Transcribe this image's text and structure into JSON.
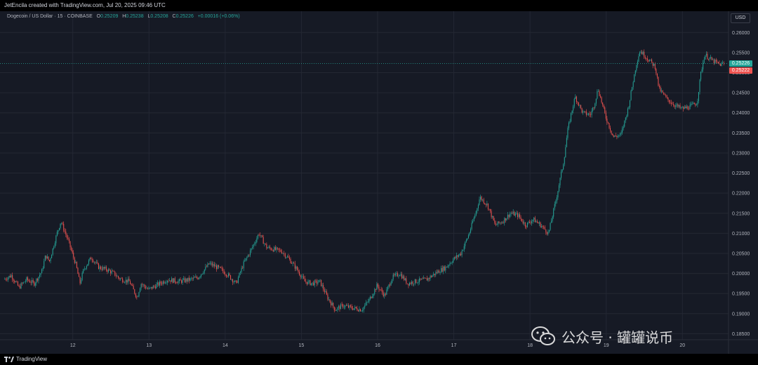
{
  "header": {
    "created_text": "JetEncila created with TradingView.com, Jul 20, 2025 09:46 UTC"
  },
  "symbol": {
    "title": "Dogecoin / US Dollar · 15 · COINBASE",
    "o_key": "O",
    "o_val": "0.25209",
    "h_key": "H",
    "h_val": "0.25238",
    "l_key": "L",
    "l_val": "0.25208",
    "c_key": "C",
    "c_val": "0.25226",
    "change": "+0.00016 (+0.06%)"
  },
  "currency_button": "USD",
  "footer": {
    "logo_text": "TradingView"
  },
  "watermark": {
    "text": "公众号 · 罐罐说币"
  },
  "colors": {
    "background": "#161a25",
    "grid": "#242833",
    "up": "#26a69a",
    "down": "#ef5350",
    "axis_text": "#b2b5be"
  },
  "chart_data": {
    "type": "candlestick",
    "title": "Dogecoin / US Dollar · 15 · COINBASE",
    "ylim": [
      0.1835,
      0.2625
    ],
    "y_ticks": [
      "0.18500",
      "0.19000",
      "0.19500",
      "0.20000",
      "0.20500",
      "0.21000",
      "0.21500",
      "0.22000",
      "0.22500",
      "0.23000",
      "0.23500",
      "0.24000",
      "0.24500",
      "0.25000",
      "0.25500",
      "0.26000"
    ],
    "x_ticks": [
      "12",
      "13",
      "14",
      "15",
      "16",
      "17",
      "18",
      "19",
      "20"
    ],
    "x_tick_positions": [
      0.5,
      1.5,
      2.5,
      3.5,
      4.5,
      5.5,
      6.5,
      7.5,
      8.5
    ],
    "xlim": [
      -0.4,
      9.05
    ],
    "current_price": "0.25226",
    "second_price_label": "0.25222",
    "current_price_value": 0.25226,
    "second_price_value": 0.25222,
    "close_path": [
      [
        -0.4,
        0.1985
      ],
      [
        -0.3,
        0.1995
      ],
      [
        -0.2,
        0.1965
      ],
      [
        -0.1,
        0.1985
      ],
      [
        0.0,
        0.1975
      ],
      [
        0.1,
        0.2005
      ],
      [
        0.15,
        0.2045
      ],
      [
        0.2,
        0.203
      ],
      [
        0.3,
        0.21
      ],
      [
        0.35,
        0.213
      ],
      [
        0.45,
        0.208
      ],
      [
        0.55,
        0.202
      ],
      [
        0.6,
        0.1975
      ],
      [
        0.65,
        0.201
      ],
      [
        0.75,
        0.204
      ],
      [
        0.85,
        0.2015
      ],
      [
        0.95,
        0.201
      ],
      [
        1.05,
        0.2
      ],
      [
        1.1,
        0.199
      ],
      [
        1.15,
        0.1985
      ],
      [
        1.25,
        0.198
      ],
      [
        1.35,
        0.194
      ],
      [
        1.4,
        0.1975
      ],
      [
        1.5,
        0.196
      ],
      [
        1.6,
        0.197
      ],
      [
        1.75,
        0.1985
      ],
      [
        1.9,
        0.198
      ],
      [
        2.05,
        0.1985
      ],
      [
        2.15,
        0.199
      ],
      [
        2.3,
        0.2025
      ],
      [
        2.45,
        0.201
      ],
      [
        2.55,
        0.1995
      ],
      [
        2.65,
        0.1975
      ],
      [
        2.75,
        0.2025
      ],
      [
        2.85,
        0.206
      ],
      [
        2.95,
        0.21
      ],
      [
        3.05,
        0.2065
      ],
      [
        3.15,
        0.206
      ],
      [
        3.25,
        0.2055
      ],
      [
        3.35,
        0.2035
      ],
      [
        3.45,
        0.201
      ],
      [
        3.55,
        0.198
      ],
      [
        3.65,
        0.1975
      ],
      [
        3.75,
        0.198
      ],
      [
        3.85,
        0.194
      ],
      [
        3.95,
        0.191
      ],
      [
        4.05,
        0.192
      ],
      [
        4.15,
        0.1915
      ],
      [
        4.3,
        0.191
      ],
      [
        4.4,
        0.1935
      ],
      [
        4.5,
        0.197
      ],
      [
        4.6,
        0.1945
      ],
      [
        4.7,
        0.199
      ],
      [
        4.8,
        0.2
      ],
      [
        4.9,
        0.1975
      ],
      [
        5.0,
        0.198
      ],
      [
        5.15,
        0.1985
      ],
      [
        5.3,
        0.2005
      ],
      [
        5.4,
        0.2015
      ],
      [
        5.5,
        0.2035
      ],
      [
        5.6,
        0.205
      ],
      [
        5.7,
        0.2095
      ],
      [
        5.8,
        0.2155
      ],
      [
        5.85,
        0.219
      ],
      [
        5.95,
        0.217
      ],
      [
        6.05,
        0.212
      ],
      [
        6.15,
        0.213
      ],
      [
        6.25,
        0.215
      ],
      [
        6.35,
        0.2145
      ],
      [
        6.45,
        0.212
      ],
      [
        6.55,
        0.2135
      ],
      [
        6.65,
        0.212
      ],
      [
        6.75,
        0.21
      ],
      [
        6.85,
        0.2185
      ],
      [
        6.95,
        0.228
      ],
      [
        7.0,
        0.2355
      ],
      [
        7.05,
        0.24
      ],
      [
        7.1,
        0.244
      ],
      [
        7.2,
        0.24
      ],
      [
        7.3,
        0.2395
      ],
      [
        7.35,
        0.242
      ],
      [
        7.4,
        0.246
      ],
      [
        7.45,
        0.2425
      ],
      [
        7.5,
        0.239
      ],
      [
        7.6,
        0.234
      ],
      [
        7.7,
        0.2345
      ],
      [
        7.8,
        0.2415
      ],
      [
        7.9,
        0.252
      ],
      [
        7.95,
        0.2555
      ],
      [
        8.05,
        0.2535
      ],
      [
        8.15,
        0.2515
      ],
      [
        8.2,
        0.246
      ],
      [
        8.3,
        0.2435
      ],
      [
        8.4,
        0.242
      ],
      [
        8.5,
        0.241
      ],
      [
        8.6,
        0.2415
      ],
      [
        8.7,
        0.2425
      ],
      [
        8.75,
        0.25
      ],
      [
        8.8,
        0.2545
      ],
      [
        8.9,
        0.253
      ],
      [
        9.0,
        0.252
      ],
      [
        9.05,
        0.2523
      ]
    ]
  }
}
